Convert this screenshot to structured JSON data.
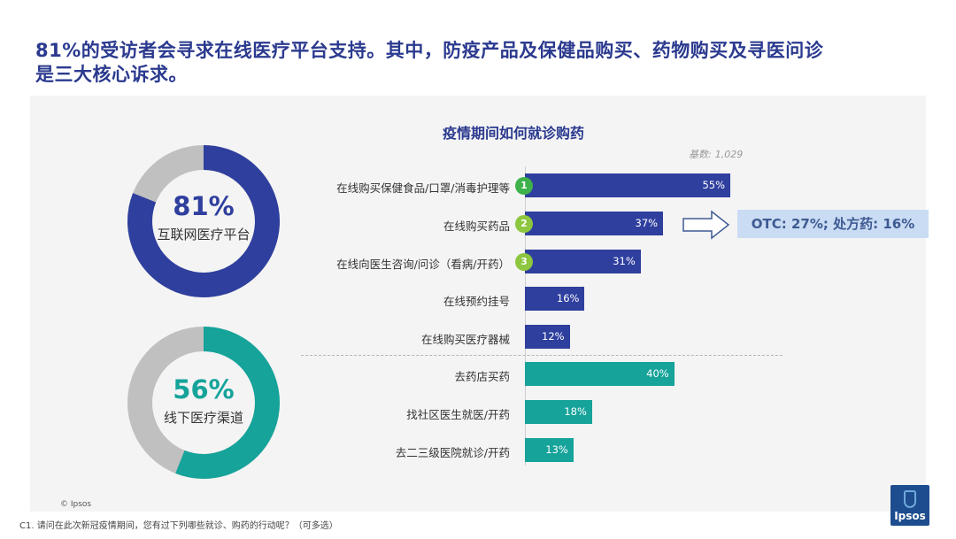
{
  "headline": {
    "line1": "81%的受访者会寻求在线医疗平台支持。其中，防疫产品及保健品购买、药物购买及寻医问诊",
    "line2": "是三大核心诉求。"
  },
  "donuts": [
    {
      "pct_label": "81%",
      "value": 81,
      "label": "互联网医疗平台",
      "color": "#2f3f9e",
      "rest_color": "#c0c0c0"
    },
    {
      "pct_label": "56%",
      "value": 56,
      "label": "线下医疗渠道",
      "color": "#15a39a",
      "rest_color": "#c0c0c0"
    }
  ],
  "colors": {
    "online": "#2f3f9e",
    "offline": "#15a39a",
    "badge": "#3db24b",
    "badge_light": "#8dc63f"
  },
  "chart_data": {
    "type": "bar",
    "title": "疫情期间如何就诊购药",
    "base_label": "基数:",
    "base_value": "1,029",
    "categories": [
      "在线购买保健食品/口罩/消毒护理等",
      "在线购买药品",
      "在线向医生咨询/问诊（看病/开药）",
      "在线预约挂号",
      "在线购买医疗器械",
      "去药店买药",
      "找社区医生就医/开药",
      "去二三级医院就诊/开药"
    ],
    "values": [
      55,
      37,
      31,
      16,
      12,
      40,
      18,
      13
    ],
    "value_labels": [
      "55%",
      "37%",
      "31%",
      "16%",
      "12%",
      "40%",
      "18%",
      "13%"
    ],
    "groups": [
      "online",
      "online",
      "online",
      "online",
      "online",
      "offline",
      "offline",
      "offline"
    ],
    "ranks": [
      "1",
      "2",
      "3",
      "",
      "",
      "",
      "",
      ""
    ],
    "xlim": [
      0,
      60
    ],
    "orientation": "horizontal"
  },
  "callout": "OTC: 27%; 处方药: 16%",
  "copyright": "© Ipsos",
  "footnote": "C1. 请问在此次新冠疫情期间，您有过下列哪些就诊、购药的行动呢？（可多选）",
  "logo_text": "Ipsos"
}
